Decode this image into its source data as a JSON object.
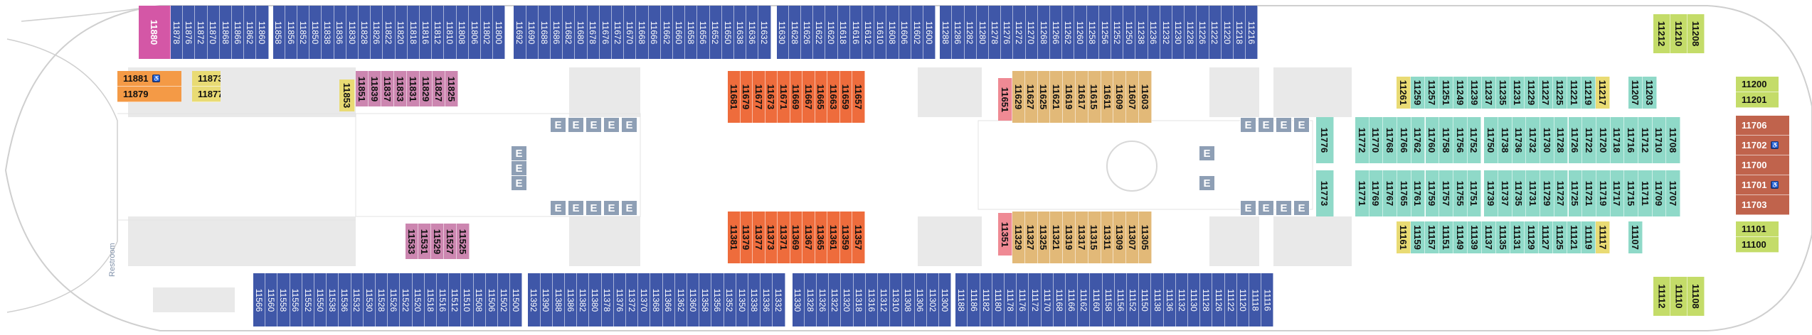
{
  "labels": {
    "restroom": "Restroom",
    "elevator": "E"
  },
  "legend": {
    "blue": "#3f57a8",
    "orange": "#ee6c3c",
    "tan": "#e2b978",
    "mauve": "#cc86b0",
    "teal": "#8fd9c8",
    "yellow": "#e9db74",
    "pink": "#ef8a94",
    "rust": "#c0634c",
    "green": "#c4dc69",
    "magenta": "#d457a6"
  },
  "top_row_blue": [
    "11878",
    "11876",
    "11872",
    "11870",
    "11868",
    "11866",
    "11862",
    "11860",
    "11858",
    "11856",
    "11852",
    "11850",
    "11838",
    "11836",
    "11830",
    "11828",
    "11826",
    "11822",
    "11820",
    "11818",
    "11816",
    "11812",
    "11810",
    "11808",
    "11806",
    "11802",
    "11800",
    "11692",
    "11690",
    "11688",
    "11686",
    "11682",
    "11680",
    "11678",
    "11676",
    "11672",
    "11670",
    "11668",
    "11666",
    "11662",
    "11660",
    "11658",
    "11656",
    "11652",
    "11650",
    "11638",
    "11636",
    "11632",
    "11630",
    "11628",
    "11626",
    "11622",
    "11620",
    "11618",
    "11616",
    "11612",
    "11610",
    "11608",
    "11606",
    "11602",
    "11600",
    "11288",
    "11286",
    "11282",
    "11280",
    "11278",
    "11276",
    "11272",
    "11270",
    "11268",
    "11266",
    "11262",
    "11260",
    "11258",
    "11256",
    "11252",
    "11250",
    "11238",
    "11236",
    "11232",
    "11230",
    "11228",
    "11226",
    "11222",
    "11220",
    "11218",
    "11216"
  ],
  "top_right_green": [
    "11212",
    "11210",
    "11208"
  ],
  "bottom_row_blue": [
    "11566",
    "11560",
    "11558",
    "11556",
    "11552",
    "11550",
    "11538",
    "11536",
    "11532",
    "11530",
    "11528",
    "11526",
    "11522",
    "11520",
    "11518",
    "11516",
    "11512",
    "11510",
    "11508",
    "11506",
    "11502",
    "11500",
    "11392",
    "11390",
    "11388",
    "11386",
    "11382",
    "11380",
    "11378",
    "11376",
    "11372",
    "11370",
    "11368",
    "11366",
    "11362",
    "11360",
    "11358",
    "11356",
    "11352",
    "11350",
    "11338",
    "11336",
    "11332",
    "11330",
    "11328",
    "11326",
    "11322",
    "11320",
    "11318",
    "11316",
    "11312",
    "11310",
    "11308",
    "11306",
    "11302",
    "11300",
    "11188",
    "11186",
    "11182",
    "11180",
    "11178",
    "11176",
    "11172",
    "11170",
    "11168",
    "11166",
    "11162",
    "11160",
    "11158",
    "11156",
    "11152",
    "11150",
    "11138",
    "11136",
    "11132",
    "11130",
    "11128",
    "11126",
    "11122",
    "11120",
    "11118",
    "11116"
  ],
  "bottom_right_green": [
    "11112",
    "11110",
    "11108"
  ],
  "magenta_forward": "11880",
  "far_forward": [
    {
      "num": "11881",
      "acc": true
    },
    {
      "num": "11879",
      "acc": false
    }
  ],
  "yellow_forward": [
    {
      "num": "11873",
      "acc": true
    },
    {
      "num": "11877",
      "acc": false
    }
  ],
  "yellow_11853": "11853",
  "mauve_top": [
    "11851",
    "11839",
    "11837",
    "11833",
    "11831",
    "11829",
    "11827",
    "11825"
  ],
  "mauve_bottom": [
    "11533",
    "11531",
    "11529",
    "11527",
    "11525"
  ],
  "orange_top": [
    "11681",
    "11679",
    "11677",
    "11673",
    "11671",
    "11669",
    "11667",
    "11665",
    "11663",
    "11659",
    "11657"
  ],
  "orange_bottom": [
    "11381",
    "11379",
    "11377",
    "11373",
    "11371",
    "11369",
    "11367",
    "11365",
    "11361",
    "11359",
    "11357"
  ],
  "pink_top": "11651",
  "pink_bottom": "11351",
  "tan_top": [
    "11629",
    "11627",
    "11625",
    "11621",
    "11619",
    "11617",
    "11615",
    "11611",
    "11609",
    "11607",
    "11603"
  ],
  "tan_bottom": [
    "11329",
    "11327",
    "11325",
    "11321",
    "11319",
    "11317",
    "11315",
    "11311",
    "11309",
    "11307",
    "11305"
  ],
  "teal_11776": "11776",
  "teal_11773": "11773",
  "row_b_top": [
    {
      "n": "11261",
      "c": "yellow"
    },
    {
      "n": "11259",
      "c": "teal"
    },
    {
      "n": "11257",
      "c": "teal"
    },
    {
      "n": "11251",
      "c": "teal"
    },
    {
      "n": "11249",
      "c": "teal"
    },
    {
      "n": "11239",
      "c": "teal"
    },
    {
      "n": "11237",
      "c": "teal"
    },
    {
      "n": "11235",
      "c": "teal"
    },
    {
      "n": "11231",
      "c": "teal"
    },
    {
      "n": "11229",
      "c": "teal"
    },
    {
      "n": "11227",
      "c": "teal"
    },
    {
      "n": "11225",
      "c": "teal"
    },
    {
      "n": "11221",
      "c": "teal"
    },
    {
      "n": "11219",
      "c": "teal"
    },
    {
      "n": "11217",
      "c": "yellow"
    },
    {
      "n": "11207",
      "c": "teal"
    },
    {
      "n": "11203",
      "c": "teal"
    }
  ],
  "row_c_top": [
    "11772",
    "11770",
    "11768",
    "11766",
    "11762",
    "11760",
    "11758",
    "11756",
    "11752",
    "11750",
    "11738",
    "11736",
    "11732",
    "11730",
    "11728",
    "11726",
    "11722",
    "11720",
    "11718",
    "11716",
    "11712",
    "11710",
    "11708"
  ],
  "row_c_bottom": [
    "11771",
    "11769",
    "11767",
    "11765",
    "11761",
    "11759",
    "11757",
    "11755",
    "11751",
    "11739",
    "11737",
    "11735",
    "11731",
    "11729",
    "11727",
    "11725",
    "11721",
    "11719",
    "11717",
    "11715",
    "11711",
    "11709",
    "11707"
  ],
  "row_b_bottom": [
    {
      "n": "11161",
      "c": "yellow"
    },
    {
      "n": "11159",
      "c": "teal"
    },
    {
      "n": "11157",
      "c": "teal"
    },
    {
      "n": "11151",
      "c": "teal"
    },
    {
      "n": "11149",
      "c": "teal"
    },
    {
      "n": "11139",
      "c": "teal"
    },
    {
      "n": "11137",
      "c": "teal"
    },
    {
      "n": "11135",
      "c": "teal"
    },
    {
      "n": "11131",
      "c": "teal"
    },
    {
      "n": "11129",
      "c": "teal"
    },
    {
      "n": "11127",
      "c": "teal"
    },
    {
      "n": "11125",
      "c": "teal"
    },
    {
      "n": "11121",
      "c": "teal"
    },
    {
      "n": "11119",
      "c": "teal"
    },
    {
      "n": "11117",
      "c": "yellow"
    },
    {
      "n": "11107",
      "c": "teal"
    }
  ],
  "aft_green_top": [
    "11200",
    "11201"
  ],
  "aft_green_bottom": [
    "11101",
    "11100"
  ],
  "aft_rust": [
    {
      "num": "11706",
      "acc": false
    },
    {
      "num": "11702",
      "acc": true
    },
    {
      "num": "11700",
      "acc": false
    },
    {
      "num": "11701",
      "acc": true
    },
    {
      "num": "11703",
      "acc": false
    }
  ]
}
